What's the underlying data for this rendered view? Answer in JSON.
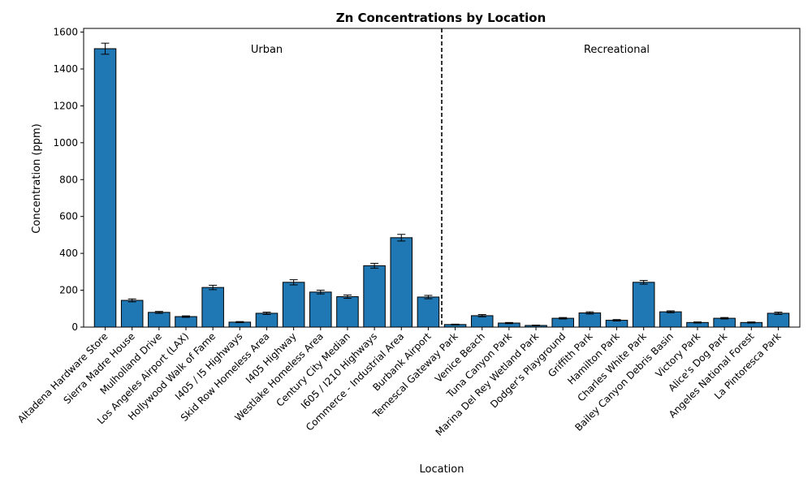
{
  "chart_data": {
    "type": "bar",
    "title": "Zn Concentrations by Location",
    "xlabel": "Location",
    "ylabel": "Concentration (ppm)",
    "ylim": [
      0,
      1620
    ],
    "yticks": [
      0,
      200,
      400,
      600,
      800,
      1000,
      1200,
      1400,
      1600
    ],
    "grid": false,
    "bar_color": "#1f77b4",
    "edge_color": "#000000",
    "categories": [
      "Altadena Hardware Store",
      "Sierra Madre House",
      "Mulholland Drive",
      "Los Angeles Airport (LAX)",
      "Hollywood Walk of Fame",
      "I405 / I5 Highways",
      "Skid Row Homeless Area",
      "I405 Highway",
      "Westlake Homeless Area",
      "Century City Median",
      "I605 / I210 Highways",
      "Commerce - Industrial Area",
      "Burbank Airport",
      "Temescal Gateway Park",
      "Venice Beach",
      "Tuna Canyon Park",
      "Marina Del Rey Wetland Park",
      "Dodger's Playground",
      "Griffith Park",
      "Hamilton Park",
      "Charles White Park",
      "Bailey Canyon Debris Basin",
      "Victory Park",
      "Alice's Dog Park",
      "Angeles National Forest",
      "La Pintoresca Park"
    ],
    "values": [
      1510,
      145,
      80,
      57,
      215,
      27,
      75,
      243,
      190,
      165,
      333,
      485,
      163,
      14,
      62,
      22,
      9,
      48,
      77,
      37,
      243,
      83,
      25,
      48,
      25,
      75
    ],
    "errors": [
      30,
      8,
      5,
      4,
      12,
      3,
      6,
      14,
      10,
      9,
      13,
      18,
      9,
      2,
      6,
      3,
      2,
      4,
      6,
      4,
      10,
      5,
      3,
      4,
      3,
      6
    ],
    "groups": [
      {
        "name": "Urban",
        "start": 0,
        "end": 12
      },
      {
        "name": "Recreational",
        "start": 13,
        "end": 25
      }
    ],
    "divider_after_index": 12
  }
}
